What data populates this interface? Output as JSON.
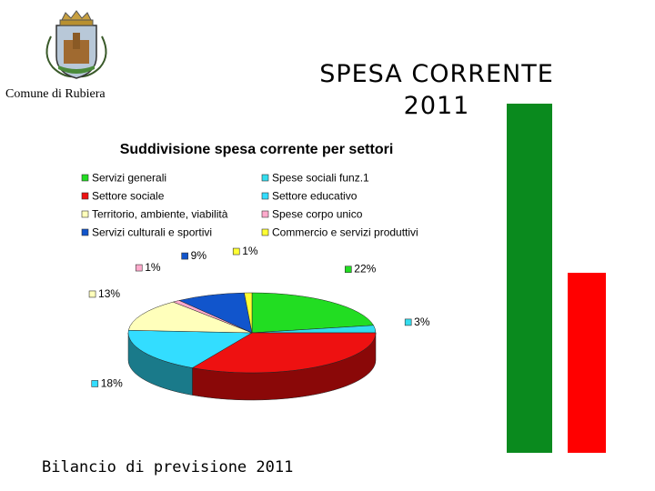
{
  "header": {
    "comune": "Comune di Rubiera",
    "title_line1": "SPESA CORRENTE",
    "title_line2": "2011"
  },
  "footer": {
    "text": "Bilancio di previsione 2011"
  },
  "decor": {
    "bar_green": "#0a8a1e",
    "bar_red": "#ff0000"
  },
  "chart_data": {
    "type": "pie",
    "title": "Suddivisione spesa corrente per settori",
    "legend_placement": "top",
    "slices": [
      {
        "name": "Servizi generali",
        "value": 22,
        "label": "22%",
        "color": "#22dd22",
        "side": "#0e8a0e"
      },
      {
        "name": "Spese sociali funz.1",
        "value": 3,
        "label": "3%",
        "color": "#33ddee",
        "side": "#1a8a9a"
      },
      {
        "name": "Settore sociale",
        "value": 33,
        "label": "33%",
        "color": "#ee1111",
        "side": "#8a0808"
      },
      {
        "name": "Settore educativo",
        "value": 18,
        "label": "18%",
        "color": "#33ddff",
        "side": "#1a7a8a"
      },
      {
        "name": "Territorio, ambiente, viabilità",
        "value": 13,
        "label": "13%",
        "color": "#ffffbb",
        "side": "#9a9a70"
      },
      {
        "name": "Spese corpo unico",
        "value": 1,
        "label": "1%",
        "color": "#ffaacc",
        "side": "#9a6070"
      },
      {
        "name": "Servizi culturali e sportivi",
        "value": 9,
        "label": "9%",
        "color": "#1155cc",
        "side": "#0a2e70"
      },
      {
        "name": "Commercio e servizi produttivi",
        "value": 1,
        "label": "1%",
        "color": "#ffff33",
        "side": "#9a9a10"
      }
    ]
  }
}
